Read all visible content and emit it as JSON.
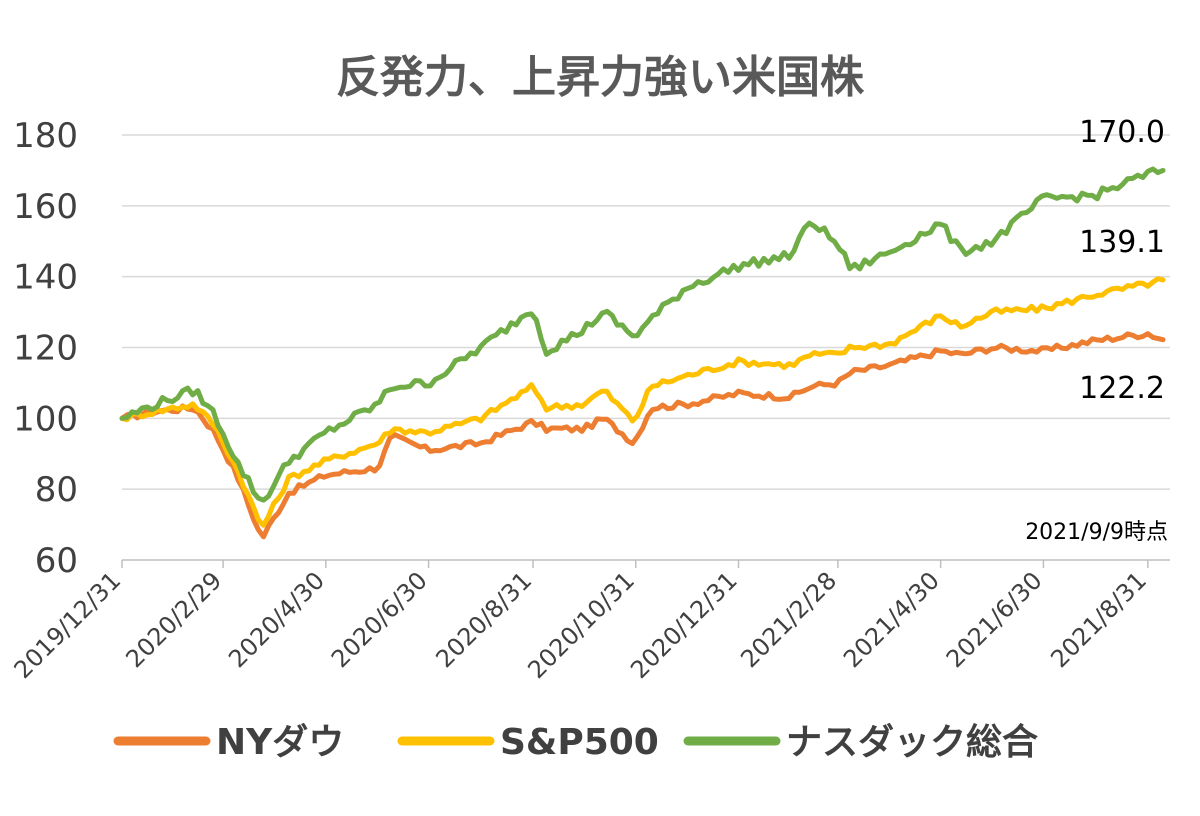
{
  "chart_data": {
    "type": "line",
    "title": "反発力、上昇力強い米国株",
    "note": "2021/9/9時点",
    "ylim": [
      60,
      180
    ],
    "yticks": [
      "60",
      "80",
      "100",
      "120",
      "140",
      "160",
      "180"
    ],
    "grid": true,
    "legend_position": "bottom",
    "xticks": [
      "2019/12/31",
      "2020/2/29",
      "2020/4/30",
      "2020/6/30",
      "2020/8/31",
      "2020/10/31",
      "2020/12/31",
      "2021/2/28",
      "2021/4/30",
      "2021/6/30",
      "2021/8/31"
    ],
    "x": [
      "2019-12-31",
      "2020-01-20",
      "2020-02-12",
      "2020-02-24",
      "2020-03-09",
      "2020-03-23",
      "2020-04-08",
      "2020-04-30",
      "2020-05-31",
      "2020-06-08",
      "2020-06-30",
      "2020-07-31",
      "2020-08-31",
      "2020-09-08",
      "2020-09-30",
      "2020-10-12",
      "2020-10-30",
      "2020-11-09",
      "2020-11-30",
      "2020-12-31",
      "2021-01-31",
      "2021-02-12",
      "2021-02-28",
      "2021-03-08",
      "2021-03-31",
      "2021-04-30",
      "2021-05-12",
      "2021-05-31",
      "2021-06-30",
      "2021-07-31",
      "2021-08-31",
      "2021-09-09"
    ],
    "series": [
      {
        "name": "NYダウ",
        "color": "#ed7d31",
        "values": [
          100,
          102,
          103,
          96,
          83,
          66,
          79,
          84,
          86,
          95,
          91,
          93,
          99,
          97,
          97,
          100,
          93,
          103,
          104,
          107,
          106,
          109,
          110,
          113,
          115,
          119,
          118,
          120,
          119,
          122,
          124,
          122.2
        ]
      },
      {
        "name": "S&P500",
        "color": "#ffc000",
        "values": [
          100,
          102,
          104,
          98,
          85,
          69,
          83,
          88,
          93,
          97,
          96,
          100,
          109,
          103,
          104,
          108,
          99,
          109,
          112,
          116,
          115,
          118,
          118,
          120,
          121,
          129,
          126,
          130,
          131,
          135,
          138,
          139.1
        ]
      },
      {
        "name": "ナスダック総合",
        "color": "#70ad47",
        "values": [
          100,
          104,
          108,
          101,
          87,
          76,
          88,
          96,
          104,
          109,
          110,
          120,
          131,
          119,
          125,
          130,
          123,
          128,
          137,
          143,
          146,
          156,
          149,
          142,
          147,
          155,
          147,
          150,
          162,
          163,
          169,
          170
        ]
      }
    ],
    "end_labels": [
      "170.0",
      "139.1",
      "122.2"
    ]
  }
}
